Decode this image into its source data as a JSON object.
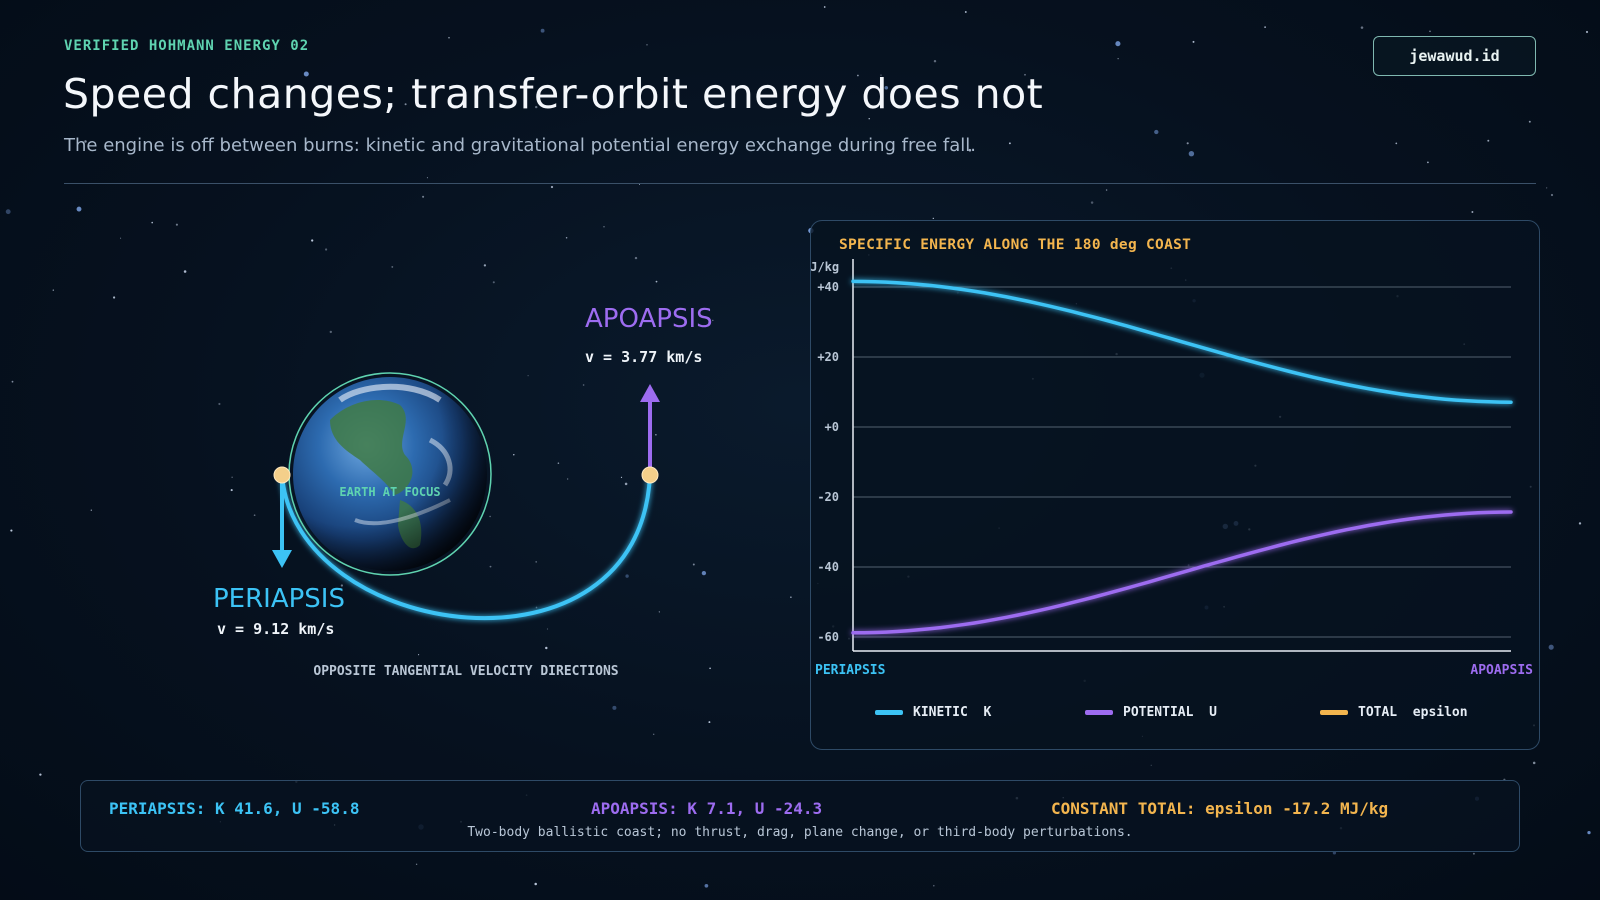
{
  "header": {
    "eyebrow": "VERIFIED HOHMANN ENERGY 02",
    "title": "Speed changes; transfer-orbit energy does not",
    "subtitle": "The engine is off between burns: kinetic and gravitational potential energy exchange during free fall.",
    "brand": "jewawud.id"
  },
  "colors": {
    "kinetic": "#3cc3f5",
    "potential": "#9d6cf0",
    "total": "#f3b54e",
    "accent": "#5fd3b0"
  },
  "diagram": {
    "apoapsis_label": "APOAPSIS",
    "apoapsis_speed": "v = 3.77 km/s",
    "periapsis_label": "PERIAPSIS",
    "periapsis_speed": "v = 9.12 km/s",
    "earth_label": "EARTH AT FOCUS",
    "caption": "OPPOSITE TANGENTIAL VELOCITY DIRECTIONS",
    "earth_icon": "earth-globe-icon"
  },
  "chart_data": {
    "type": "line",
    "title": "SPECIFIC ENERGY ALONG THE 180 deg COAST",
    "ylabel": "MJ/kg",
    "ylim": [
      -64,
      48
    ],
    "yticks": [
      {
        "value": 40,
        "label": "+40"
      },
      {
        "value": 20,
        "label": "+20"
      },
      {
        "value": 0,
        "label": "+0"
      },
      {
        "value": -20,
        "label": "-20"
      },
      {
        "value": -40,
        "label": "-40"
      },
      {
        "value": -60,
        "label": "-60"
      }
    ],
    "x_start_label": "PERIAPSIS",
    "x_end_label": "APOAPSIS",
    "x_range_deg": [
      0,
      180
    ],
    "grid": true,
    "series": [
      {
        "name": "KINETIC  K",
        "key": "kinetic",
        "start": 41.6,
        "end": 7.1
      },
      {
        "name": "POTENTIAL  U",
        "key": "potential",
        "start": -58.8,
        "end": -24.3
      },
      {
        "name": "TOTAL  epsilon",
        "key": "total",
        "start": -17.2,
        "end": -17.2
      }
    ]
  },
  "summary": {
    "periapsis": "PERIAPSIS: K 41.6, U -58.8",
    "apoapsis": "APOAPSIS: K 7.1, U -24.3",
    "total": "CONSTANT TOTAL: epsilon -17.2 MJ/kg",
    "note": "Two-body ballistic coast; no thrust, drag, plane change, or third-body perturbations."
  }
}
